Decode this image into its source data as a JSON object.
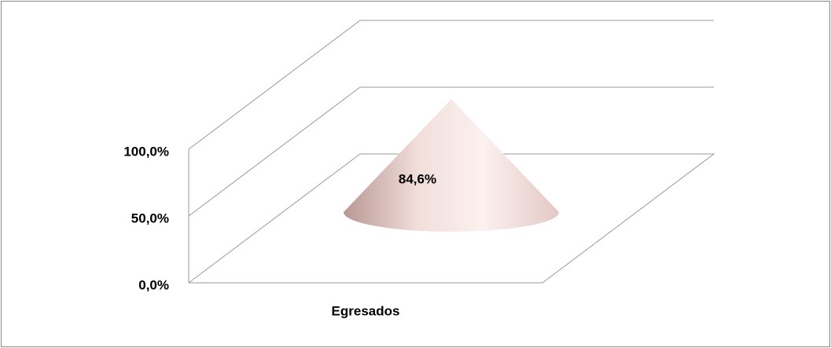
{
  "chart_data": {
    "type": "cone",
    "categories": [
      "Egresados"
    ],
    "values": [
      84.6
    ],
    "value_labels": [
      "84,6%"
    ],
    "color": "#f3dedb",
    "ylim": [
      0,
      100
    ],
    "yticks": [
      {
        "value": 0,
        "label": "0,0%"
      },
      {
        "value": 50,
        "label": "50,0%"
      },
      {
        "value": 100,
        "label": "100,0%"
      }
    ],
    "grid": true
  }
}
